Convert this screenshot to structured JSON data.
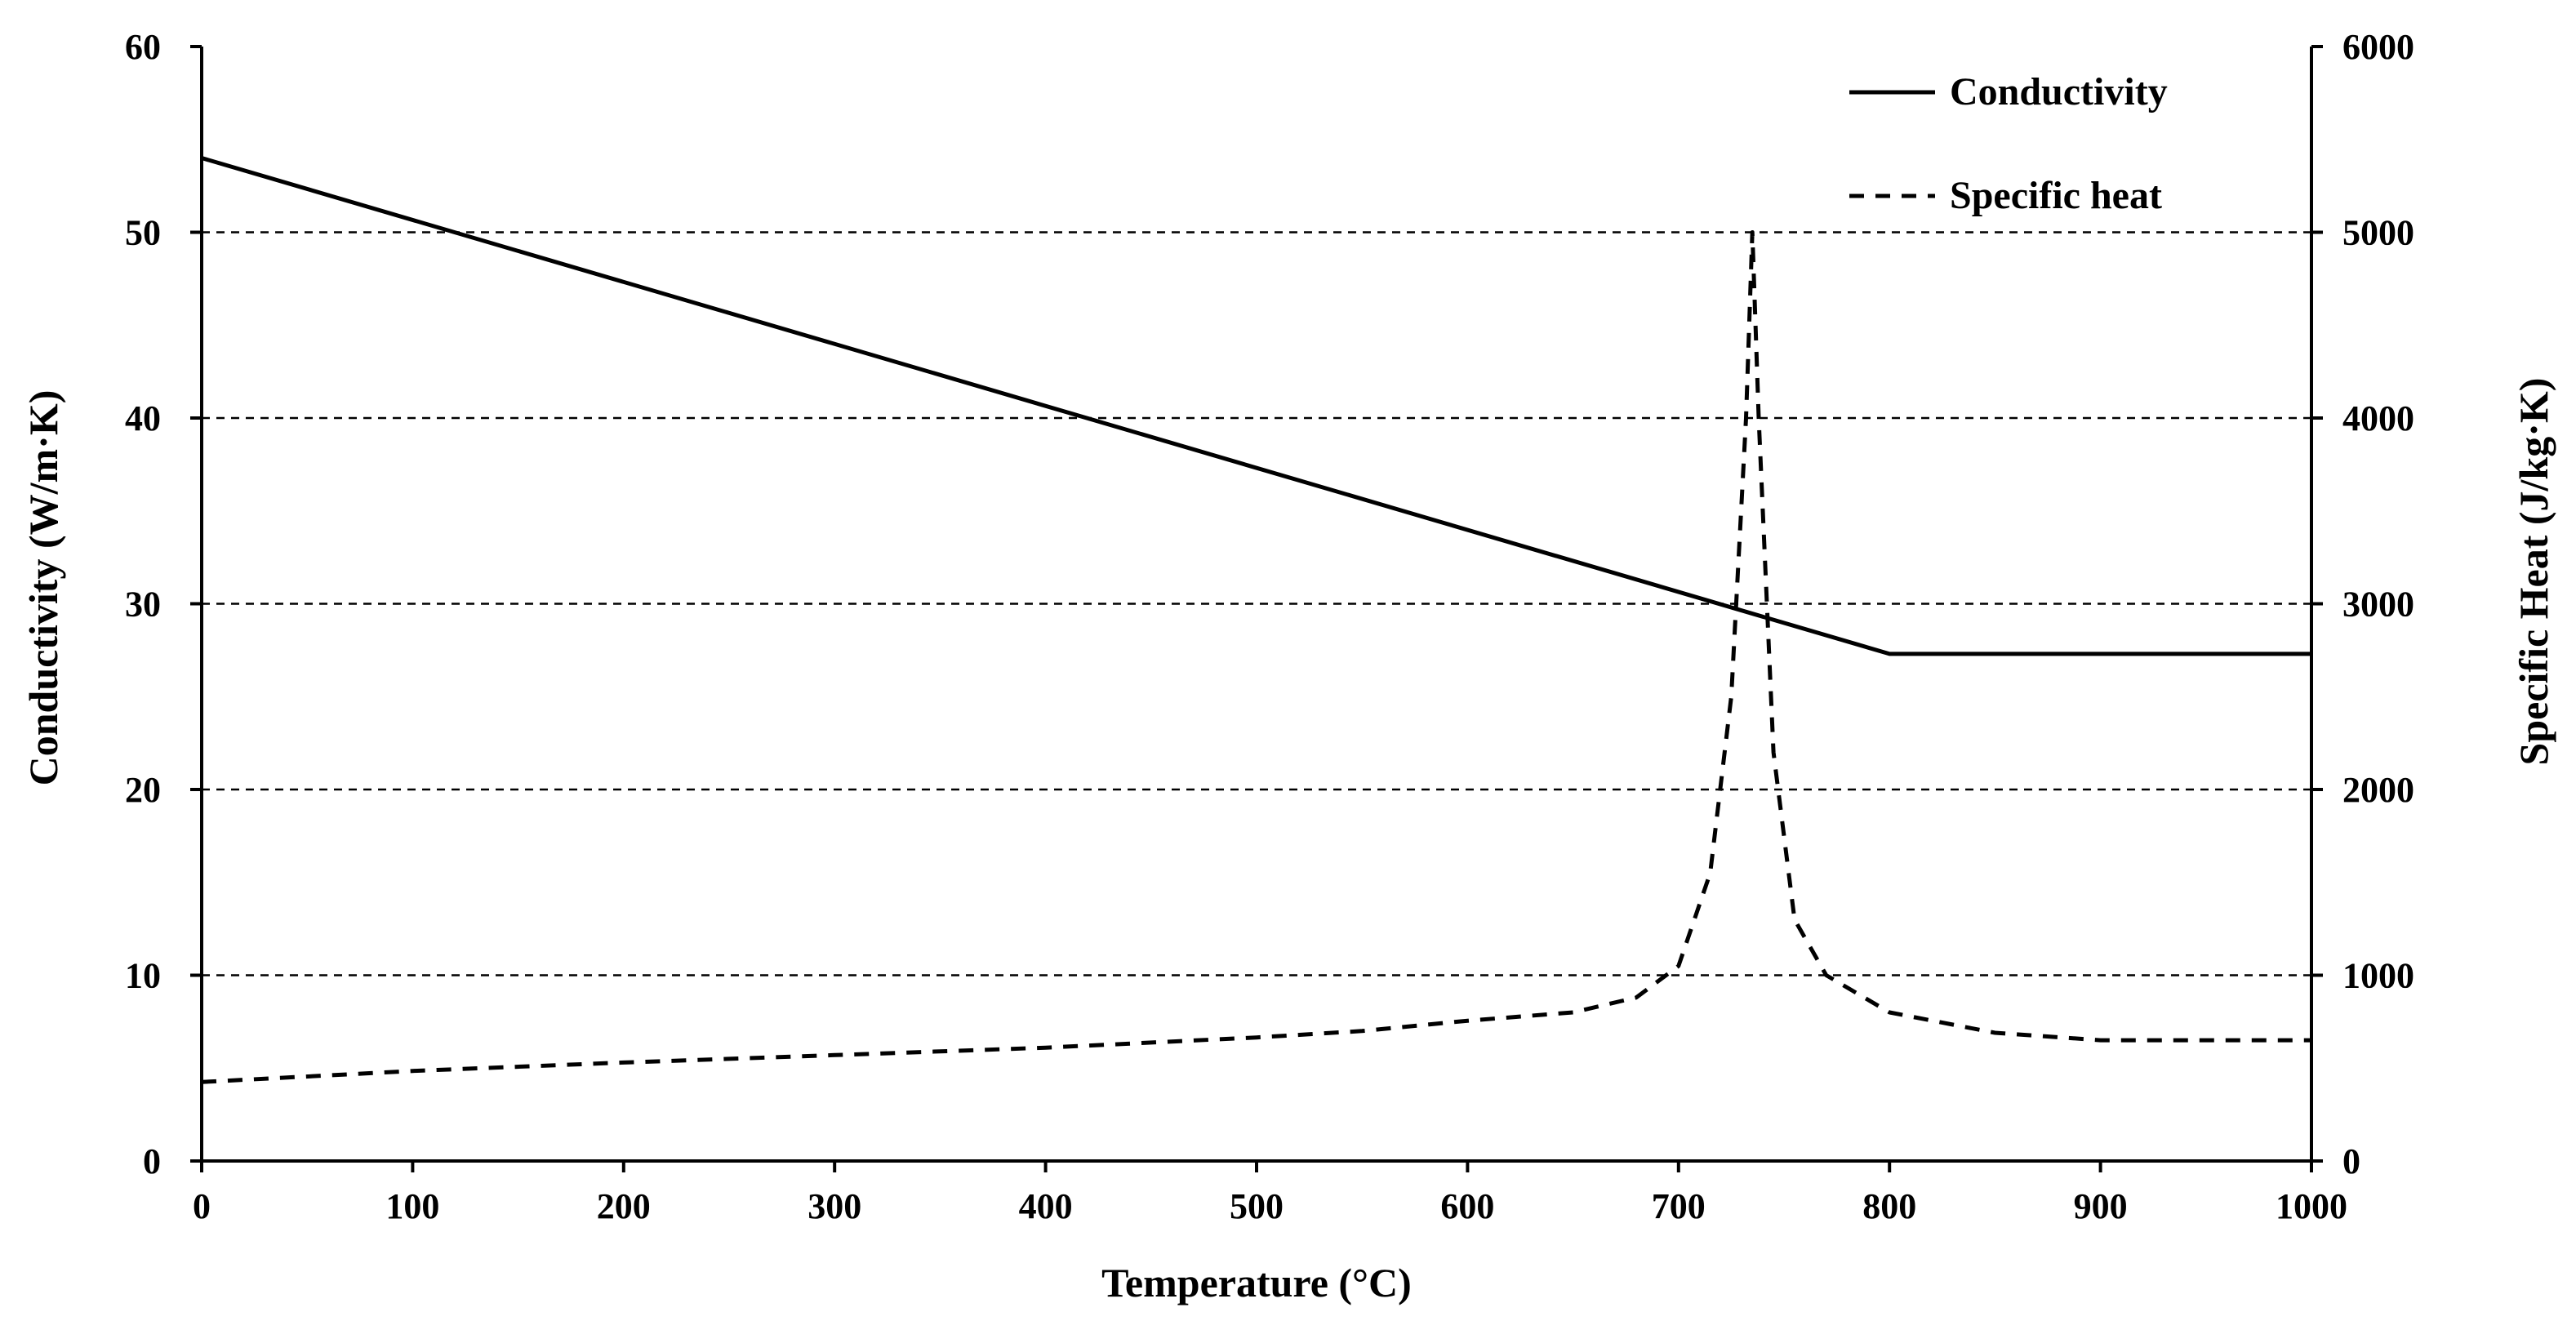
{
  "chart_data": {
    "type": "line",
    "title": "",
    "xlabel": "Temperature (°C)",
    "ylabel_left": "Conductivity (W/m·K)",
    "ylabel_right": "Specific Heat (J/kg·K)",
    "xlim": [
      0,
      1000
    ],
    "ylim_left": [
      0,
      60
    ],
    "ylim_right": [
      0,
      6000
    ],
    "x_ticks": [
      0,
      100,
      200,
      300,
      400,
      500,
      600,
      700,
      800,
      900,
      1000
    ],
    "y_left_ticks": [
      0,
      10,
      20,
      30,
      40,
      50,
      60
    ],
    "y_right_ticks": [
      0,
      1000,
      2000,
      3000,
      4000,
      5000,
      6000
    ],
    "grid": "horizontal dashed",
    "legend_position": "top-right",
    "series": [
      {
        "name": "Conductivity",
        "axis": "left",
        "style": "solid",
        "x": [
          0,
          800,
          1000
        ],
        "y": [
          54,
          27.3,
          27.3
        ]
      },
      {
        "name": "Specific heat",
        "axis": "right",
        "style": "dashed",
        "x": [
          0,
          100,
          200,
          300,
          400,
          500,
          550,
          600,
          650,
          680,
          700,
          715,
          725,
          732,
          735,
          738,
          745,
          755,
          770,
          800,
          850,
          900,
          1000
        ],
        "y": [
          425,
          485,
          530,
          570,
          610,
          665,
          700,
          755,
          800,
          880,
          1050,
          1550,
          2500,
          4000,
          5000,
          4000,
          2200,
          1300,
          1000,
          800,
          690,
          650,
          650
        ]
      }
    ]
  }
}
